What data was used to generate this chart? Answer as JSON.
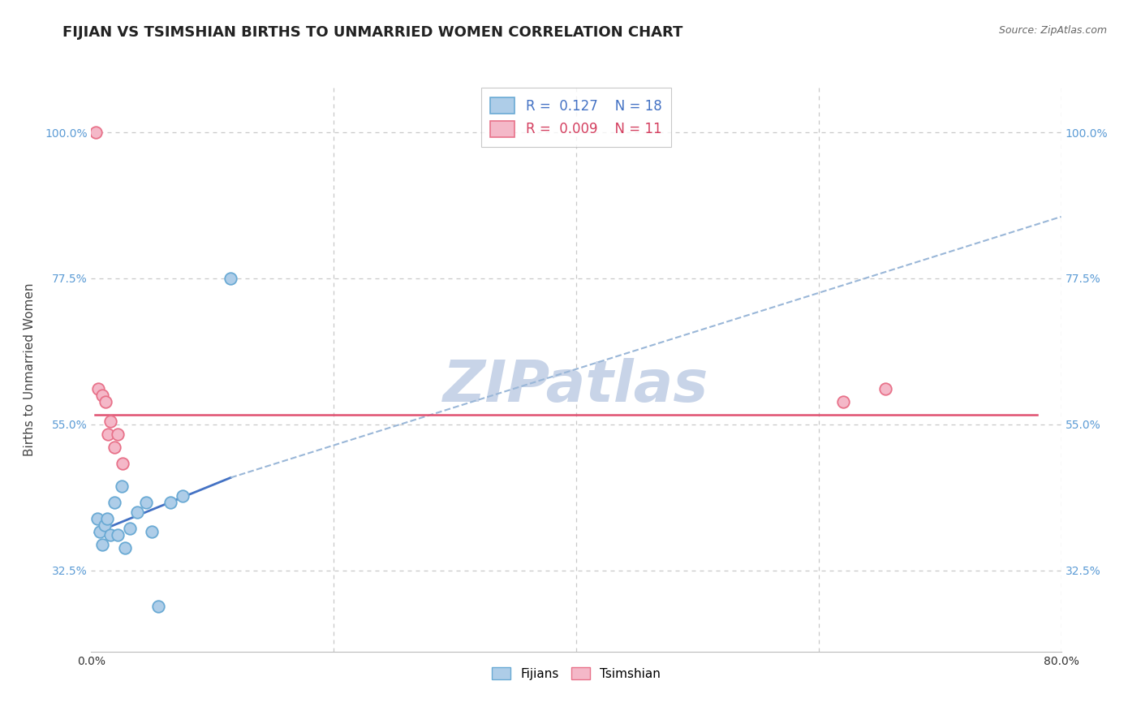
{
  "title": "FIJIAN VS TSIMSHIAN BIRTHS TO UNMARRIED WOMEN CORRELATION CHART",
  "source": "Source: ZipAtlas.com",
  "ylabel": "Births to Unmarried Women",
  "watermark": "ZIPatlas",
  "xlim": [
    0.0,
    0.8
  ],
  "ylim": [
    0.2,
    1.07
  ],
  "yticks": [
    0.325,
    0.55,
    0.775,
    1.0
  ],
  "ytick_labels": [
    "32.5%",
    "55.0%",
    "77.5%",
    "100.0%"
  ],
  "xticks": [
    0.0,
    0.2,
    0.4,
    0.6,
    0.8
  ],
  "xtick_labels": [
    "0.0%",
    "",
    "",
    "",
    "80.0%"
  ],
  "fijian_R": 0.127,
  "fijian_N": 18,
  "tsimshian_R": 0.009,
  "tsimshian_N": 11,
  "fijian_color": "#aecde8",
  "tsimshian_color": "#f4b8c8",
  "fijian_edge_color": "#6aaad4",
  "tsimshian_edge_color": "#e8728a",
  "grid_color": "#c8c8c8",
  "fijian_scatter_x": [
    0.005,
    0.007,
    0.009,
    0.011,
    0.013,
    0.016,
    0.019,
    0.022,
    0.025,
    0.028,
    0.032,
    0.038,
    0.045,
    0.05,
    0.055,
    0.065,
    0.075,
    0.115
  ],
  "fijian_scatter_y": [
    0.405,
    0.385,
    0.365,
    0.395,
    0.405,
    0.38,
    0.43,
    0.38,
    0.455,
    0.36,
    0.39,
    0.415,
    0.43,
    0.385,
    0.27,
    0.43,
    0.44,
    0.775
  ],
  "tsimshian_scatter_x": [
    0.004,
    0.006,
    0.009,
    0.012,
    0.014,
    0.016,
    0.019,
    0.022,
    0.026,
    0.62,
    0.655
  ],
  "tsimshian_scatter_y": [
    1.0,
    0.605,
    0.595,
    0.585,
    0.535,
    0.555,
    0.515,
    0.535,
    0.49,
    0.585,
    0.605
  ],
  "fijian_solid_trend_x": [
    0.003,
    0.115
  ],
  "fijian_solid_trend_y": [
    0.383,
    0.468
  ],
  "fijian_dashed_trend_x": [
    0.115,
    0.8
  ],
  "fijian_dashed_trend_y": [
    0.468,
    0.87
  ],
  "tsimshian_trend_x": [
    0.003,
    0.78
  ],
  "tsimshian_trend_y": [
    0.565,
    0.565
  ],
  "fijian_solid_color": "#4472c4",
  "fijian_dashed_color": "#9ab7d8",
  "tsimshian_line_color": "#e05070",
  "watermark_color": "#c8d4e8",
  "watermark_fontsize": 52,
  "title_fontsize": 13,
  "axis_label_fontsize": 11,
  "tick_fontsize": 10,
  "legend_fontsize": 12,
  "marker_size": 110
}
